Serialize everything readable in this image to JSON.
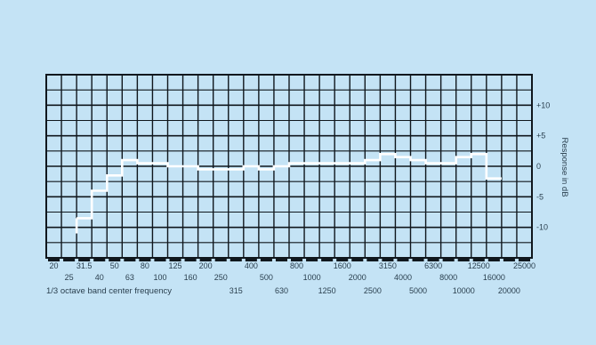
{
  "chart_data": {
    "type": "line",
    "title": "",
    "xlabel": "1/3 octave band center frequency",
    "ylabel": "Response in dB",
    "line_color": "#ffffff",
    "grid_color": "#10171d",
    "background_color": "#c4e3f5",
    "grid": true,
    "y_range": [
      -15,
      15
    ],
    "y_ticks": [
      "+10",
      "+5",
      "0",
      "-5",
      "-10"
    ],
    "x_ticks_row1": [
      "20",
      "31.5",
      "50",
      "80",
      "125",
      "200",
      "400",
      "800",
      "1600",
      "3150",
      "6300",
      "12500",
      "25000"
    ],
    "x_ticks_row2": [
      "25",
      "40",
      "63",
      "100",
      "160",
      "250",
      "500",
      "1000",
      "2000",
      "4000",
      "8000",
      "16000"
    ],
    "x_ticks_row3": [
      "315",
      "630",
      "1250",
      "2500",
      "5000",
      "10000",
      "20000"
    ],
    "x": [
      "20",
      "25",
      "31.5",
      "40",
      "50",
      "63",
      "80",
      "100",
      "125",
      "160",
      "200",
      "250",
      "315",
      "400",
      "500",
      "630",
      "800",
      "1000",
      "1250",
      "1600",
      "2000",
      "2500",
      "3150",
      "4000",
      "5000",
      "6300",
      "8000",
      "10000",
      "12500",
      "16000",
      "20000",
      "25000"
    ],
    "series": [
      {
        "values": [
          null,
          null,
          -8.5,
          -4,
          -1.5,
          1,
          0.5,
          0.5,
          0,
          0,
          -0.5,
          -0.5,
          -0.5,
          0,
          -0.5,
          0,
          0.5,
          0.5,
          0.5,
          0.5,
          0.5,
          1,
          2,
          1.5,
          1,
          0.5,
          0.5,
          1.5,
          2,
          -2,
          null,
          null
        ]
      }
    ]
  }
}
